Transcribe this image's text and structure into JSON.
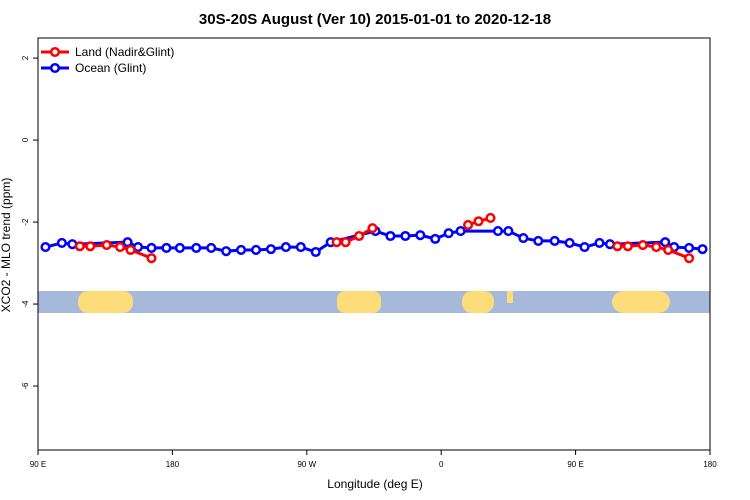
{
  "chart_data": {
    "type": "line",
    "title": "30S-20S August (Ver 10)   2015-01-01 to 2020-12-18",
    "x_label": "Longitude (deg E)",
    "y_label": "XCO2 - MLO trend (ppm)",
    "xlim": [
      90,
      540
    ],
    "xticks": [
      {
        "value": 90,
        "label": "90 E"
      },
      180,
      {
        "value": 270,
        "label": "90 W"
      },
      {
        "value": 360,
        "label": "0"
      },
      {
        "value": 450,
        "label": "90 E"
      },
      {
        "value": 540,
        "label": "180"
      }
    ],
    "ylim": [
      -7.56,
      2.49
    ],
    "yticks": [
      2,
      0,
      -2,
      -4,
      -6
    ],
    "legend": "top-left",
    "series": [
      {
        "name": "Land (Nadir&Glint)",
        "color": "#ff0000",
        "x": [
          118,
          125,
          136,
          145,
          152,
          166,
          null,
          290,
          296,
          305,
          314,
          null,
          378,
          385,
          393,
          null,
          478,
          485,
          495,
          504,
          512,
          526
        ],
        "values": [
          -2.59,
          -2.59,
          -2.56,
          -2.61,
          -2.68,
          -2.88,
          null,
          -2.49,
          -2.49,
          -2.34,
          -2.15,
          null,
          -2.07,
          -1.98,
          -1.9,
          null,
          -2.59,
          -2.59,
          -2.56,
          -2.61,
          -2.68,
          -2.88
        ]
      },
      {
        "name": "Ocean (Glint)",
        "color": "#0000ff",
        "x": [
          95,
          106,
          113,
          150,
          157,
          166,
          176,
          185,
          196,
          206,
          216,
          226,
          236,
          246,
          256,
          266,
          276,
          286,
          316,
          326,
          336,
          346,
          356,
          365,
          373,
          398,
          405,
          415,
          425,
          436,
          446,
          456,
          466,
          473,
          510,
          516,
          526,
          535
        ],
        "values": [
          -2.61,
          -2.51,
          -2.54,
          -2.49,
          -2.61,
          -2.63,
          -2.63,
          -2.63,
          -2.63,
          -2.63,
          -2.71,
          -2.68,
          -2.68,
          -2.66,
          -2.61,
          -2.61,
          -2.73,
          -2.49,
          -2.22,
          -2.34,
          -2.34,
          -2.32,
          -2.41,
          -2.27,
          -2.22,
          -2.22,
          -2.22,
          -2.39,
          -2.46,
          -2.46,
          -2.51,
          -2.61,
          -2.51,
          -2.54,
          -2.49,
          -2.61,
          -2.63,
          -2.66
        ]
      }
    ]
  }
}
